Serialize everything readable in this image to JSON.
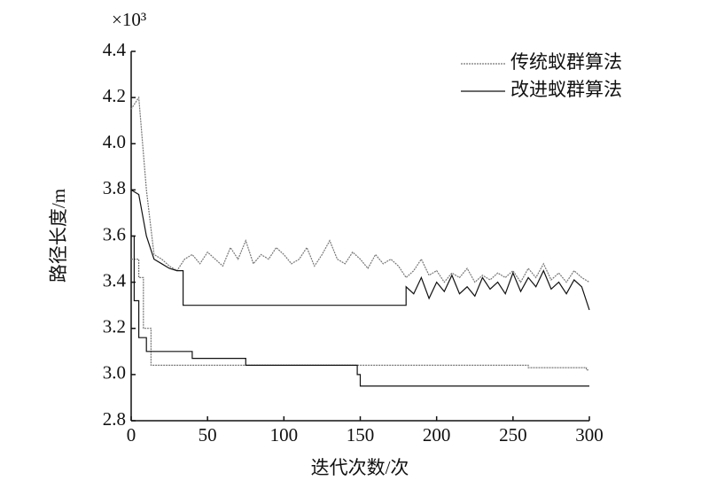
{
  "chart_data": {
    "type": "line",
    "x_label": "迭代次数/次",
    "y_label": "路径长度/m",
    "y_multiplier": "×10³",
    "xlim": [
      0,
      300
    ],
    "xticks": [
      0,
      50,
      100,
      150,
      200,
      250,
      300
    ],
    "ylim": [
      2.8,
      4.4
    ],
    "yticks": [
      {
        "value": 2.8,
        "label": "2.8"
      },
      {
        "value": 3,
        "label": "3.0"
      },
      {
        "value": 3.2,
        "label": "3.2"
      },
      {
        "value": 3.4,
        "label": "3.4"
      },
      {
        "value": 3.6,
        "label": "3.6"
      },
      {
        "value": 3.8,
        "label": "3.8"
      },
      {
        "value": 4,
        "label": "4.0"
      },
      {
        "value": 4.2,
        "label": "4.2"
      },
      {
        "value": 4.4,
        "label": "4.4"
      }
    ],
    "legend": "upper right",
    "series": [
      {
        "name": "传统蚁群算法",
        "color": "#777777",
        "dash": "2,1",
        "x": [
          0,
          5,
          10,
          15,
          20,
          25,
          30,
          35,
          40,
          45,
          50,
          55,
          60,
          65,
          70,
          75,
          80,
          85,
          90,
          95,
          100,
          105,
          110,
          115,
          120,
          125,
          130,
          135,
          140,
          145,
          150,
          155,
          160,
          165,
          170,
          175,
          180,
          185,
          190,
          195,
          200,
          205,
          210,
          215,
          220,
          225,
          230,
          235,
          240,
          245,
          250,
          255,
          260,
          265,
          270,
          275,
          280,
          285,
          290,
          295,
          300
        ],
        "values": [
          4.15,
          4.2,
          3.8,
          3.52,
          3.5,
          3.47,
          3.45,
          3.5,
          3.52,
          3.48,
          3.53,
          3.5,
          3.47,
          3.55,
          3.5,
          3.58,
          3.48,
          3.52,
          3.5,
          3.55,
          3.52,
          3.48,
          3.5,
          3.55,
          3.47,
          3.52,
          3.58,
          3.5,
          3.48,
          3.53,
          3.5,
          3.46,
          3.52,
          3.48,
          3.5,
          3.47,
          3.42,
          3.45,
          3.5,
          3.43,
          3.45,
          3.4,
          3.44,
          3.42,
          3.46,
          3.4,
          3.43,
          3.41,
          3.44,
          3.42,
          3.45,
          3.4,
          3.46,
          3.42,
          3.48,
          3.41,
          3.44,
          3.4,
          3.45,
          3.42,
          3.4
        ],
        "best_x": [
          0,
          5,
          5,
          8,
          8,
          13,
          13,
          260,
          260,
          298,
          298,
          300
        ],
        "best_values": [
          3.5,
          3.5,
          3.42,
          3.42,
          3.2,
          3.2,
          3.04,
          3.04,
          3.03,
          3.03,
          3.02,
          3.02
        ]
      },
      {
        "name": "改进蚁群算法",
        "color": "#111111",
        "dash": "none",
        "x": [
          0,
          5,
          10,
          15,
          20,
          25,
          30,
          34,
          34,
          180,
          180,
          185,
          190,
          195,
          200,
          205,
          210,
          215,
          220,
          225,
          230,
          235,
          240,
          245,
          250,
          255,
          260,
          265,
          270,
          275,
          280,
          285,
          290,
          295,
          300
        ],
        "values": [
          3.8,
          3.78,
          3.6,
          3.5,
          3.48,
          3.46,
          3.45,
          3.45,
          3.3,
          3.3,
          3.38,
          3.35,
          3.42,
          3.33,
          3.4,
          3.36,
          3.43,
          3.35,
          3.38,
          3.34,
          3.42,
          3.37,
          3.4,
          3.35,
          3.44,
          3.36,
          3.42,
          3.38,
          3.45,
          3.37,
          3.4,
          3.35,
          3.41,
          3.38,
          3.28
        ],
        "best_x": [
          0,
          2,
          2,
          5,
          5,
          10,
          10,
          40,
          40,
          75,
          75,
          148,
          148,
          150,
          150,
          300
        ],
        "best_values": [
          3.6,
          3.6,
          3.32,
          3.32,
          3.16,
          3.16,
          3.1,
          3.1,
          3.07,
          3.07,
          3.04,
          3.04,
          3.0,
          3.0,
          2.95,
          2.95
        ]
      }
    ]
  }
}
